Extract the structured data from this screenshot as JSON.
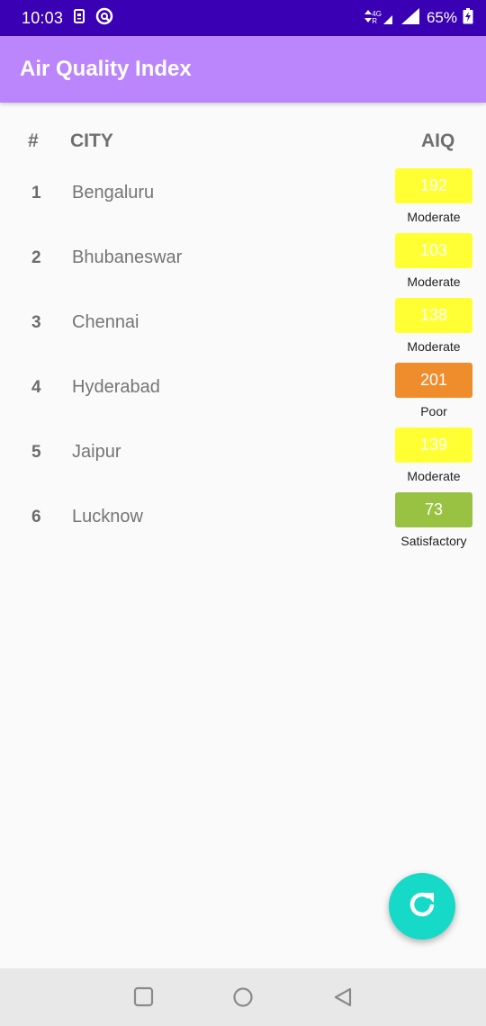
{
  "status_bar": {
    "time": "10:03",
    "network": "4G",
    "roaming": "R",
    "battery": "65%"
  },
  "app_bar": {
    "title": "Air Quality Index",
    "color": "#bb86fc"
  },
  "table": {
    "headers": {
      "number": "#",
      "city": "CITY",
      "aqi": "AIQ"
    },
    "rows": [
      {
        "rank": "1",
        "city": "Bengaluru",
        "aqi": "192",
        "category": "Moderate",
        "color": "#ffff33"
      },
      {
        "rank": "2",
        "city": "Bhubaneswar",
        "aqi": "103",
        "category": "Moderate",
        "color": "#ffff33"
      },
      {
        "rank": "3",
        "city": "Chennai",
        "aqi": "138",
        "category": "Moderate",
        "color": "#ffff33"
      },
      {
        "rank": "4",
        "city": "Hyderabad",
        "aqi": "201",
        "category": "Poor",
        "color": "#ef8c2c"
      },
      {
        "rank": "5",
        "city": "Jaipur",
        "aqi": "139",
        "category": "Moderate",
        "color": "#ffff33"
      },
      {
        "rank": "6",
        "city": "Lucknow",
        "aqi": "73",
        "category": "Satisfactory",
        "color": "#99c243"
      }
    ]
  },
  "fab": {
    "icon": "refresh-icon",
    "color": "#17d9c8"
  },
  "nav_bar": {
    "icons": [
      "recents-icon",
      "home-icon",
      "back-icon"
    ]
  }
}
